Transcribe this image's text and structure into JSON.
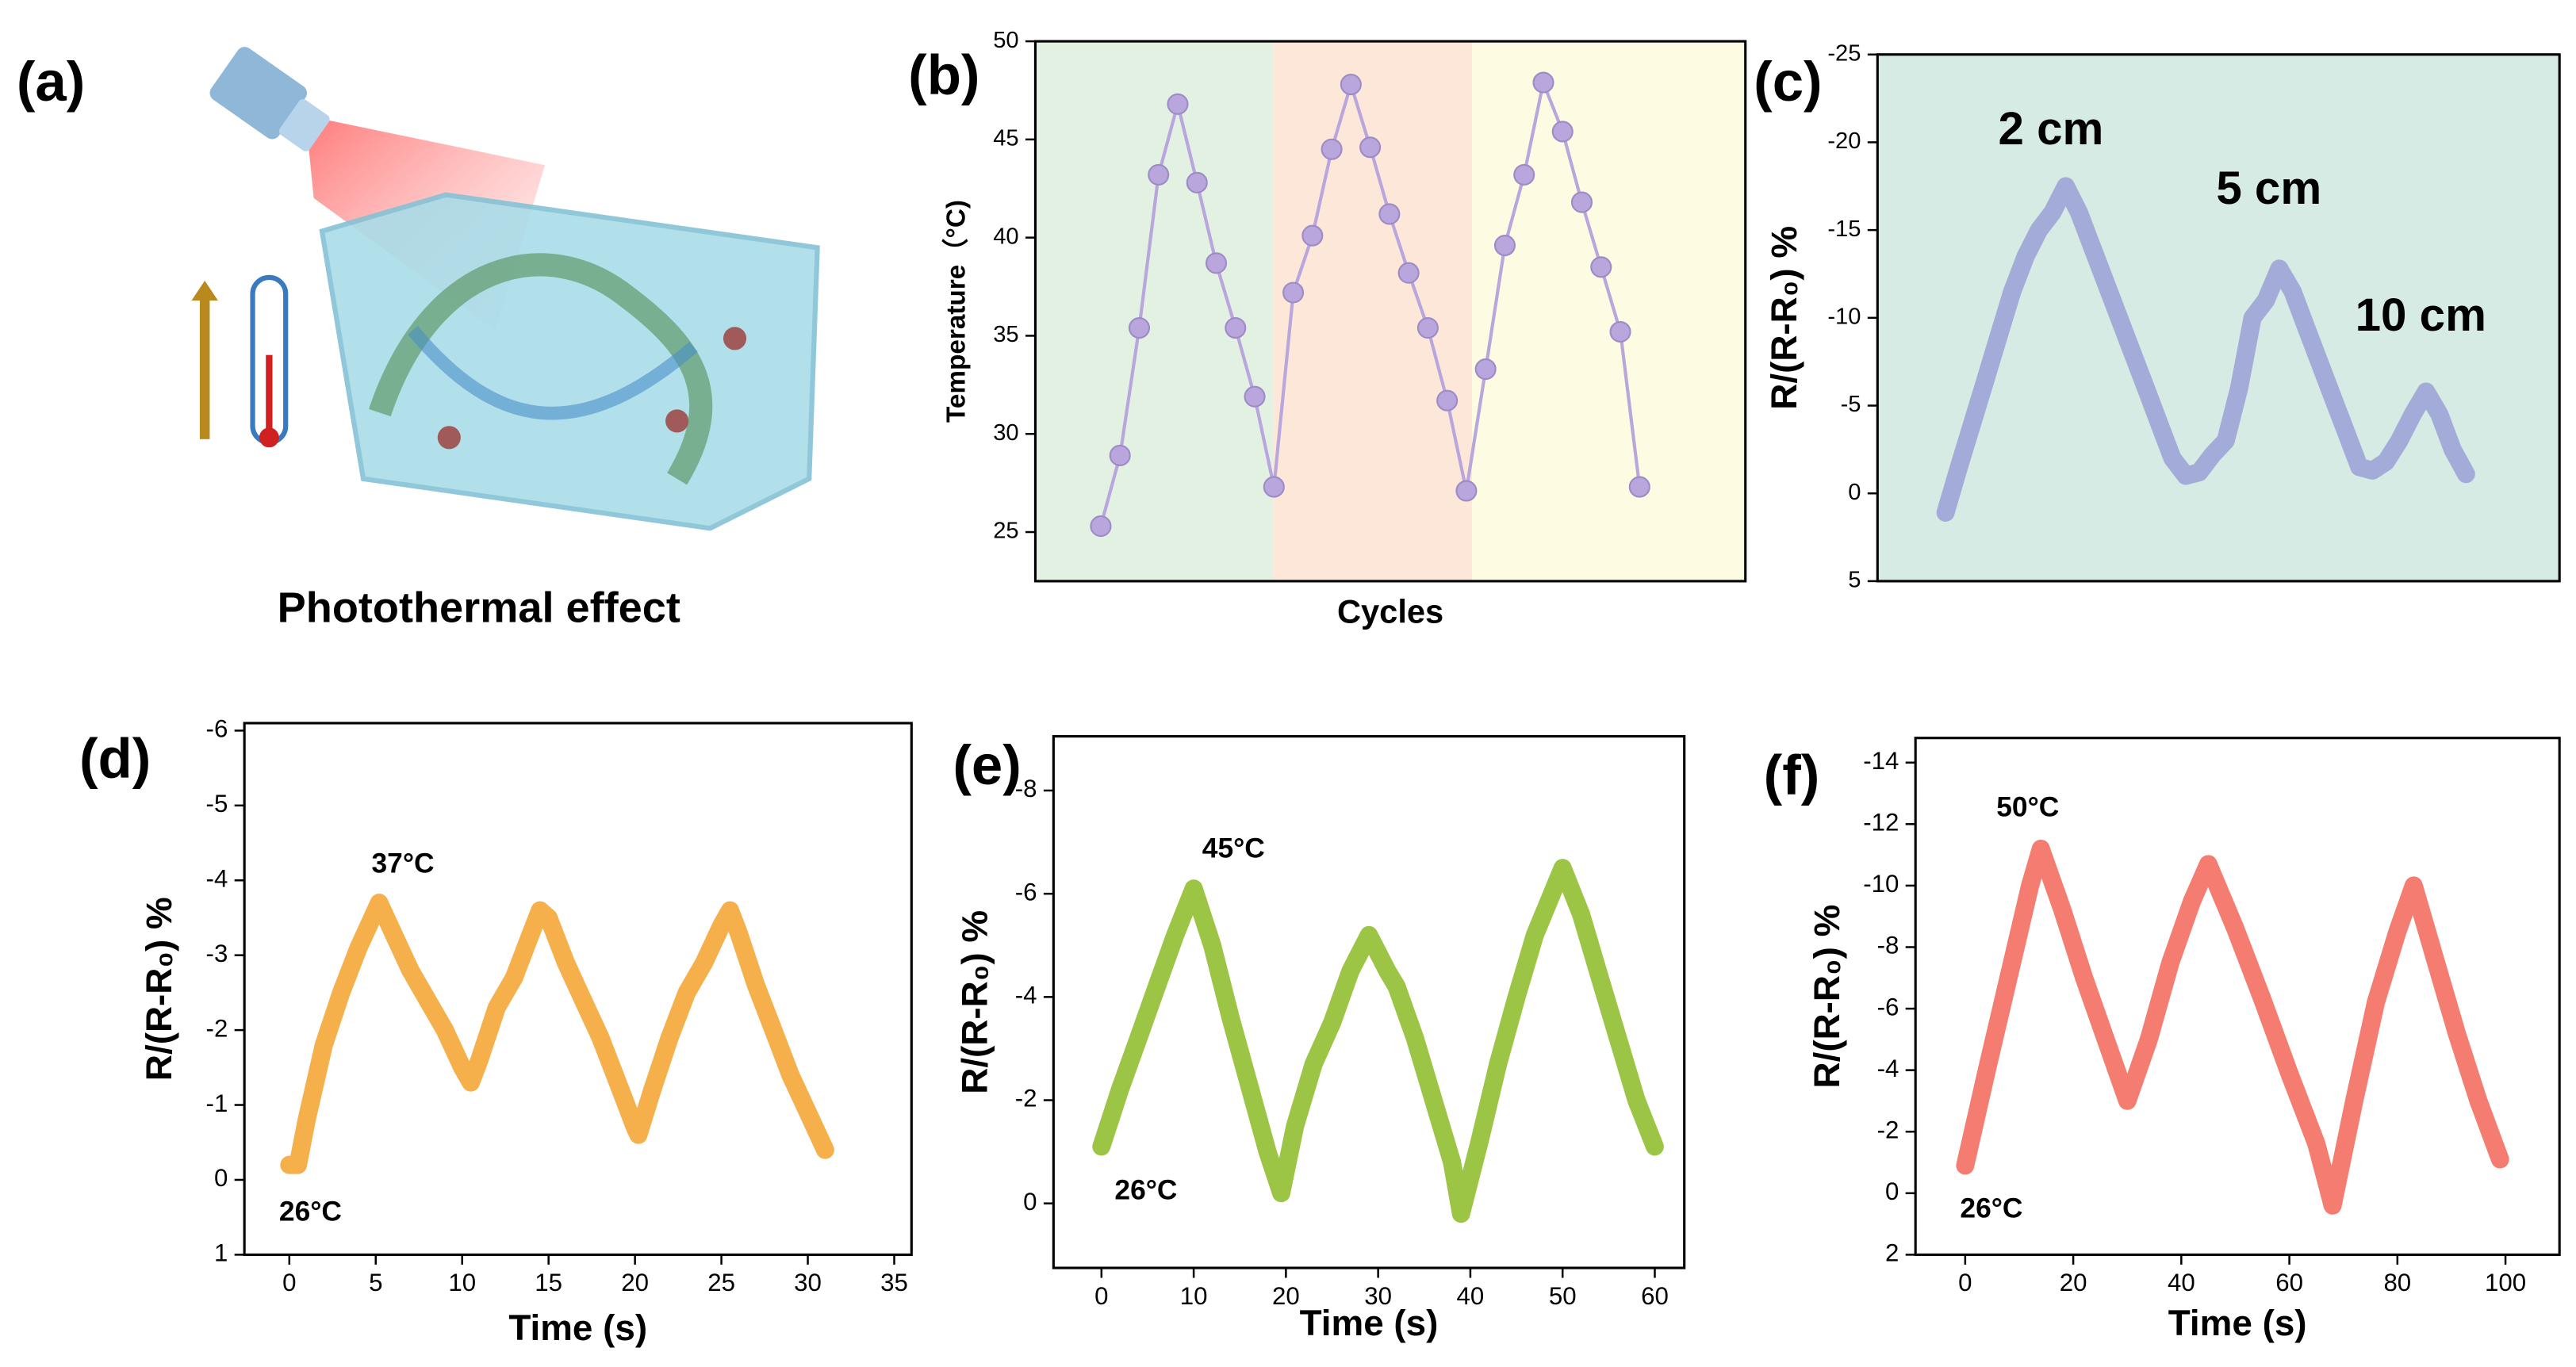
{
  "panel_a": {
    "label": "(a)",
    "caption": "Photothermal effect"
  },
  "chart_data": [
    {
      "type": "line",
      "panel_label": "(b)",
      "ylabel": "Temperature（°C)",
      "xlabel": "Cycles",
      "color": "#b9a6dc",
      "markers": true,
      "bands": [
        "#e3f1e3",
        "#fde7d9",
        "#fdfbe1"
      ],
      "values": [
        25.3,
        28.9,
        35.4,
        43.2,
        46.8,
        42.8,
        38.7,
        35.4,
        31.9,
        27.3,
        37.2,
        40.1,
        44.5,
        47.8,
        44.6,
        41.2,
        38.2,
        35.4,
        31.7,
        27.1,
        33.3,
        39.6,
        43.2,
        47.9,
        45.4,
        41.8,
        38.5,
        35.2,
        27.3
      ],
      "ylim": [
        22.5,
        50
      ],
      "yticks": [
        25,
        30,
        35,
        40,
        45,
        50
      ]
    },
    {
      "type": "line",
      "panel_label": "(c)",
      "ylabel": "R/(R-R₀) %",
      "color": "#a3acd8",
      "background": "#d6ebe3",
      "values": [
        1.1,
        -1.5,
        -4,
        -6.5,
        -9,
        -11.5,
        -13.5,
        -15,
        -16,
        -17.5,
        -16,
        -14,
        -12,
        -10,
        -8,
        -6,
        -4,
        -2,
        -1,
        -1.2,
        -2.2,
        -3,
        -6,
        -10,
        -11,
        -12.8,
        -11.5,
        -9.5,
        -7.5,
        -5.5,
        -3.5,
        -1.5,
        -1.3,
        -1.8,
        -3,
        -4.5,
        -5.8,
        -4.5,
        -2.5,
        -1.1
      ],
      "annotations": [
        {
          "text": "2 cm",
          "color": "#000000"
        },
        {
          "text": "5 cm",
          "color": "#000000"
        },
        {
          "text": "10 cm",
          "color": "#000000"
        }
      ],
      "ylim": [
        5,
        -25
      ],
      "yticks": [
        5,
        0,
        -5,
        -10,
        -15,
        -20,
        -25
      ]
    },
    {
      "type": "line",
      "panel_label": "(d)",
      "ylabel": "R/(R-R₀) %",
      "xlabel": "Time (s)",
      "color": "#f5b04b",
      "x": [
        0,
        0.5,
        1,
        1.5,
        2,
        3,
        4,
        5,
        5.2,
        6,
        7,
        8,
        9,
        10,
        10.5,
        11,
        12,
        13,
        14,
        14.5,
        15,
        16,
        17,
        18,
        19,
        20,
        20.2,
        21,
        22,
        23,
        24,
        25,
        25.5,
        26,
        27,
        28,
        29,
        30,
        31
      ],
      "values": [
        -0.2,
        -0.2,
        -0.8,
        -1.3,
        -1.8,
        -2.5,
        -3.1,
        -3.6,
        -3.7,
        -3.3,
        -2.8,
        -2.4,
        -2.0,
        -1.5,
        -1.3,
        -1.6,
        -2.3,
        -2.7,
        -3.3,
        -3.6,
        -3.5,
        -2.9,
        -2.4,
        -1.9,
        -1.3,
        -0.7,
        -0.6,
        -1.2,
        -1.9,
        -2.5,
        -2.9,
        -3.4,
        -3.6,
        -3.3,
        -2.6,
        -2.0,
        -1.4,
        -0.9,
        -0.4
      ],
      "annotations": [
        {
          "text": "37°C",
          "color": "#f0a048"
        },
        {
          "text": "26°C",
          "color": "#5b9bd5"
        }
      ],
      "xlim": [
        -2.6,
        36
      ],
      "xticks": [
        0,
        5,
        10,
        15,
        20,
        25,
        30,
        35
      ],
      "ylim": [
        1,
        -6.1
      ],
      "yticks": [
        1,
        0,
        -1,
        -2,
        -3,
        -4,
        -5,
        -6
      ]
    },
    {
      "type": "line",
      "panel_label": "(e)",
      "ylabel": "R/(R-R₀) %",
      "xlabel": "Time (s)",
      "color": "#9dc545",
      "x": [
        0,
        2,
        4,
        6,
        8,
        10,
        12,
        14,
        16,
        18,
        19.5,
        21,
        23,
        25,
        27,
        29,
        31,
        32,
        34,
        36,
        38,
        39,
        41,
        43,
        45,
        47,
        50,
        52,
        54,
        56,
        58,
        60
      ],
      "values": [
        -1.1,
        -2.2,
        -3.2,
        -4.2,
        -5.2,
        -6.1,
        -5,
        -3.6,
        -2.3,
        -1,
        -0.2,
        -1.5,
        -2.7,
        -3.5,
        -4.5,
        -5.2,
        -4.5,
        -4.2,
        -3.2,
        -2.0,
        -0.8,
        0.2,
        -1.2,
        -2.7,
        -4,
        -5.2,
        -6.5,
        -5.6,
        -4.4,
        -3.2,
        -2,
        -1.1
      ],
      "annotations": [
        {
          "text": "45°C",
          "color": "#f07a6a"
        },
        {
          "text": "26°C",
          "color": "#9bb8d8"
        }
      ],
      "xlim": [
        -5.2,
        63.2
      ],
      "xticks": [
        0,
        10,
        20,
        30,
        40,
        50,
        60
      ],
      "ylim": [
        1.25,
        -9.05
      ],
      "yticks": [
        0,
        -2,
        -4,
        -6,
        -8
      ]
    },
    {
      "type": "line",
      "panel_label": "(f)",
      "ylabel": "R/(R-R₀) %",
      "xlabel": "Time (s)",
      "color": "#f47c70",
      "x": [
        0,
        4,
        8,
        12,
        14,
        18,
        22,
        26,
        30,
        34,
        38,
        42,
        45,
        50,
        55,
        60,
        65,
        68,
        72,
        76,
        80,
        83,
        87,
        91,
        95,
        99
      ],
      "values": [
        -0.9,
        -4,
        -7,
        -10,
        -11.2,
        -9.2,
        -7,
        -5,
        -3,
        -5,
        -7.5,
        -9.5,
        -10.7,
        -8.6,
        -6.3,
        -3.9,
        -1.6,
        0.4,
        -3,
        -6.2,
        -8.5,
        -10,
        -7.6,
        -5.2,
        -3,
        -1.1
      ],
      "annotations": [
        {
          "text": "50°C",
          "color": "#c8407a"
        },
        {
          "text": "26°C",
          "color": "#5b9bd5"
        }
      ],
      "xlim": [
        -9.2,
        110
      ],
      "xticks": [
        0,
        20,
        40,
        60,
        80,
        100
      ],
      "ylim": [
        2,
        -14.8
      ],
      "yticks": [
        2,
        0,
        -2,
        -4,
        -6,
        -8,
        -10,
        -12,
        -14
      ]
    }
  ]
}
